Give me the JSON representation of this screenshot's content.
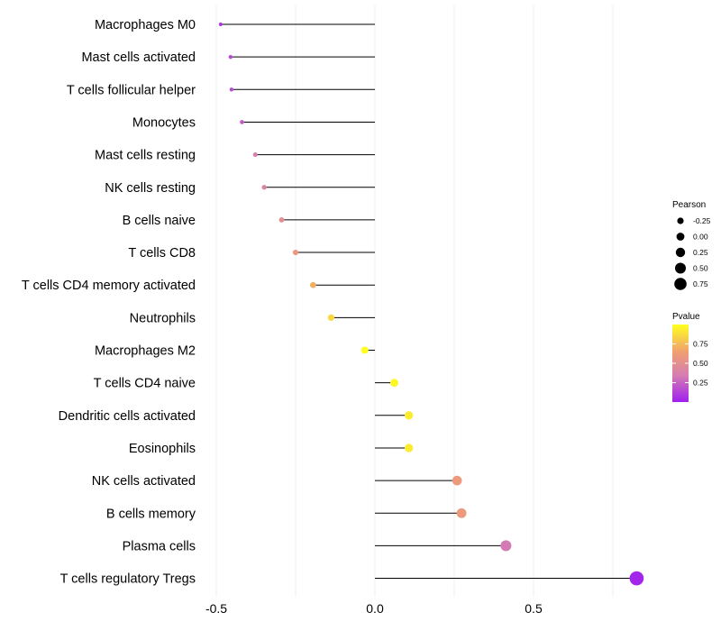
{
  "chart_data": {
    "type": "lollipop",
    "categories": [
      "Macrophages M0",
      "Mast cells activated",
      "T cells follicular helper",
      "Monocytes",
      "Mast cells resting",
      "NK cells resting",
      "B cells naive",
      "T cells CD8",
      "T cells CD4 memory activated",
      "Neutrophils",
      "Macrophages M2",
      "T cells CD4 naive",
      "Dendritic cells activated",
      "Eosinophils",
      "NK cells activated",
      "B cells memory",
      "Plasma cells",
      "T cells regulatory  Tregs"
    ],
    "values": [
      -0.486,
      -0.455,
      -0.452,
      -0.419,
      -0.377,
      -0.349,
      -0.294,
      -0.25,
      -0.195,
      -0.138,
      -0.032,
      0.061,
      0.107,
      0.107,
      0.259,
      0.273,
      0.413,
      0.825
    ],
    "pvalues": [
      0.08,
      0.15,
      0.16,
      0.22,
      0.36,
      0.4,
      0.5,
      0.58,
      0.7,
      0.85,
      0.99,
      0.97,
      0.93,
      0.93,
      0.6,
      0.6,
      0.33,
      0.02
    ],
    "x_ticks": [
      -0.5,
      0.0,
      0.5
    ],
    "x_tick_labels": [
      "-0.5",
      "0.0",
      "0.5"
    ],
    "xlim": [
      -0.67,
      0.89
    ],
    "xlabel": "",
    "ylabel": "",
    "legend_position": "right",
    "size_legend": {
      "title": "Pearson",
      "values": [
        -0.25,
        0.0,
        0.25,
        0.5,
        0.75
      ],
      "labels": [
        "-0.25",
        "0.00",
        "0.25",
        "0.50",
        "0.75"
      ]
    },
    "color_legend": {
      "title": "Pvalue",
      "range": [
        0.0,
        1.0
      ],
      "ticks": [
        0.75,
        0.5,
        0.25
      ],
      "labels": [
        "0.75",
        "0.50",
        "0.25"
      ],
      "gradient": [
        "#a020f0",
        "#d67eb0",
        "#f0a070",
        "#ffff20"
      ]
    },
    "colors": {
      "stem": "#000000",
      "grid": "#ebebeb"
    }
  }
}
